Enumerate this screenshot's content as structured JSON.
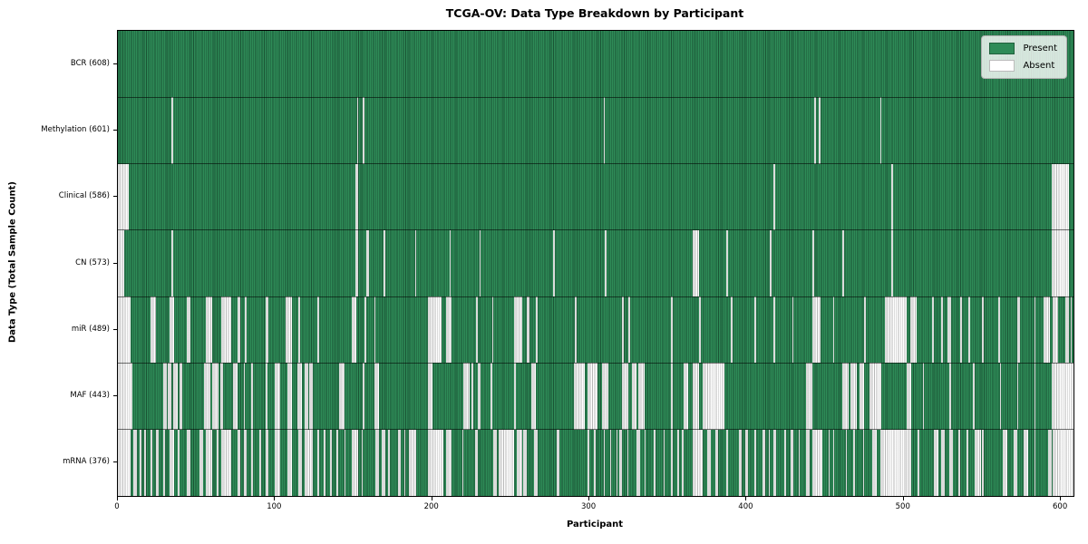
{
  "chart_data": {
    "type": "heatmap",
    "title": "TCGA-OV: Data Type Breakdown by Participant",
    "xlabel": "Participant",
    "ylabel": "Data Type (Total Sample Count)",
    "x_ticks": [
      0,
      100,
      200,
      300,
      400,
      500,
      600
    ],
    "x_max": 608,
    "grid": false,
    "legend_position": "upper right",
    "legend": [
      {
        "label": "Present",
        "color": "#2e8b57"
      },
      {
        "label": "Absent",
        "color": "#ffffff"
      }
    ],
    "rows": [
      {
        "label": "BCR (608)",
        "name": "BCR",
        "present_count": 608,
        "absent_ranges": []
      },
      {
        "label": "Methylation (601)",
        "name": "Methylation",
        "present_count": 601,
        "absent_ranges": [
          [
            34,
            35
          ],
          [
            152,
            153
          ],
          [
            156,
            157
          ],
          [
            309,
            310
          ],
          [
            443,
            444
          ],
          [
            446,
            447
          ],
          [
            485,
            486
          ]
        ]
      },
      {
        "label": "Clinical (586)",
        "name": "Clinical",
        "present_count": 586,
        "absent_ranges": [
          [
            0,
            7
          ],
          [
            151,
            153
          ],
          [
            417,
            418
          ],
          [
            492,
            493
          ],
          [
            594,
            605
          ]
        ]
      },
      {
        "label": "CN (573)",
        "name": "CN",
        "present_count": 573,
        "absent_ranges": [
          [
            0,
            4
          ],
          [
            34,
            35
          ],
          [
            151,
            153
          ],
          [
            158,
            160
          ],
          [
            169,
            170
          ],
          [
            189,
            190
          ],
          [
            211,
            212
          ],
          [
            230,
            231
          ],
          [
            277,
            278
          ],
          [
            310,
            311
          ],
          [
            366,
            370
          ],
          [
            387,
            388
          ],
          [
            415,
            416
          ],
          [
            442,
            443
          ],
          [
            461,
            462
          ],
          [
            492,
            493
          ],
          [
            594,
            605
          ]
        ]
      },
      {
        "label": "miR (489)",
        "name": "miR",
        "present_count": 489,
        "absent_ranges": [
          [
            0,
            8
          ],
          [
            21,
            24
          ],
          [
            33,
            36
          ],
          [
            44,
            46
          ],
          [
            56,
            60
          ],
          [
            66,
            72
          ],
          [
            76,
            78
          ],
          [
            81,
            82
          ],
          [
            94,
            96
          ],
          [
            107,
            111
          ],
          [
            115,
            116
          ],
          [
            127,
            128
          ],
          [
            149,
            152
          ],
          [
            157,
            158
          ],
          [
            163,
            164
          ],
          [
            197,
            206
          ],
          [
            209,
            212
          ],
          [
            228,
            229
          ],
          [
            238,
            239
          ],
          [
            252,
            257
          ],
          [
            260,
            262
          ],
          [
            266,
            267
          ],
          [
            291,
            292
          ],
          [
            321,
            322
          ],
          [
            325,
            326
          ],
          [
            352,
            353
          ],
          [
            370,
            371
          ],
          [
            390,
            391
          ],
          [
            405,
            406
          ],
          [
            417,
            418
          ],
          [
            429,
            430
          ],
          [
            442,
            447
          ],
          [
            455,
            456
          ],
          [
            475,
            476
          ],
          [
            488,
            502
          ],
          [
            504,
            508
          ],
          [
            518,
            519
          ],
          [
            524,
            525
          ],
          [
            528,
            530
          ],
          [
            536,
            537
          ],
          [
            541,
            542
          ],
          [
            550,
            551
          ],
          [
            560,
            561
          ],
          [
            572,
            574
          ],
          [
            583,
            584
          ],
          [
            589,
            593
          ],
          [
            595,
            598
          ],
          [
            603,
            605
          ],
          [
            606,
            607
          ]
        ]
      },
      {
        "label": "MAF (443)",
        "name": "MAF",
        "present_count": 443,
        "absent_ranges": [
          [
            0,
            9
          ],
          [
            29,
            31
          ],
          [
            32,
            34
          ],
          [
            35,
            38
          ],
          [
            39,
            41
          ],
          [
            55,
            59
          ],
          [
            60,
            64
          ],
          [
            65,
            67
          ],
          [
            73,
            76
          ],
          [
            80,
            81
          ],
          [
            85,
            86
          ],
          [
            94,
            95
          ],
          [
            100,
            103
          ],
          [
            108,
            111
          ],
          [
            114,
            117
          ],
          [
            119,
            121
          ],
          [
            122,
            124
          ],
          [
            141,
            144
          ],
          [
            156,
            157
          ],
          [
            163,
            166
          ],
          [
            197,
            200
          ],
          [
            220,
            224
          ],
          [
            225,
            226
          ],
          [
            229,
            231
          ],
          [
            237,
            238
          ],
          [
            252,
            253
          ],
          [
            263,
            266
          ],
          [
            290,
            297
          ],
          [
            299,
            305
          ],
          [
            308,
            312
          ],
          [
            321,
            325
          ],
          [
            327,
            330
          ],
          [
            331,
            335
          ],
          [
            352,
            353
          ],
          [
            360,
            363
          ],
          [
            366,
            370
          ],
          [
            372,
            386
          ],
          [
            438,
            442
          ],
          [
            461,
            465
          ],
          [
            466,
            470
          ],
          [
            472,
            475
          ],
          [
            478,
            486
          ],
          [
            502,
            505
          ],
          [
            512,
            513
          ],
          [
            529,
            530
          ],
          [
            544,
            545
          ],
          [
            561,
            562
          ],
          [
            572,
            573
          ],
          [
            583,
            584
          ],
          [
            594,
            608
          ]
        ]
      },
      {
        "label": "mRNA (376)",
        "name": "mRNA",
        "present_count": 376,
        "absent_ranges": [
          [
            0,
            8
          ],
          [
            10,
            12
          ],
          [
            14,
            15
          ],
          [
            17,
            18
          ],
          [
            21,
            22
          ],
          [
            24,
            26
          ],
          [
            29,
            30
          ],
          [
            33,
            36
          ],
          [
            38,
            39
          ],
          [
            44,
            46
          ],
          [
            52,
            54
          ],
          [
            56,
            60
          ],
          [
            63,
            64
          ],
          [
            66,
            72
          ],
          [
            76,
            78
          ],
          [
            80,
            82
          ],
          [
            85,
            86
          ],
          [
            90,
            91
          ],
          [
            94,
            96
          ],
          [
            100,
            103
          ],
          [
            108,
            111
          ],
          [
            115,
            117
          ],
          [
            119,
            124
          ],
          [
            127,
            128
          ],
          [
            131,
            132
          ],
          [
            135,
            136
          ],
          [
            139,
            140
          ],
          [
            144,
            145
          ],
          [
            149,
            153
          ],
          [
            155,
            156
          ],
          [
            164,
            166
          ],
          [
            168,
            170
          ],
          [
            172,
            173
          ],
          [
            178,
            180
          ],
          [
            182,
            183
          ],
          [
            185,
            190
          ],
          [
            197,
            207
          ],
          [
            209,
            212
          ],
          [
            219,
            220
          ],
          [
            227,
            229
          ],
          [
            239,
            241
          ],
          [
            242,
            252
          ],
          [
            254,
            257
          ],
          [
            258,
            260
          ],
          [
            265,
            267
          ],
          [
            279,
            281
          ],
          [
            299,
            300
          ],
          [
            303,
            304
          ],
          [
            309,
            310
          ],
          [
            313,
            314
          ],
          [
            317,
            318
          ],
          [
            319,
            321
          ],
          [
            324,
            325
          ],
          [
            330,
            332
          ],
          [
            335,
            336
          ],
          [
            341,
            342
          ],
          [
            347,
            348
          ],
          [
            352,
            353
          ],
          [
            356,
            357
          ],
          [
            359,
            360
          ],
          [
            366,
            372
          ],
          [
            375,
            377
          ],
          [
            380,
            382
          ],
          [
            387,
            388
          ],
          [
            395,
            397
          ],
          [
            399,
            401
          ],
          [
            405,
            406
          ],
          [
            410,
            412
          ],
          [
            414,
            415
          ],
          [
            417,
            419
          ],
          [
            424,
            425
          ],
          [
            428,
            430
          ],
          [
            433,
            434
          ],
          [
            438,
            440
          ],
          [
            442,
            448
          ],
          [
            452,
            453
          ],
          [
            455,
            456
          ],
          [
            463,
            464
          ],
          [
            468,
            469
          ],
          [
            474,
            475
          ],
          [
            480,
            483
          ],
          [
            485,
            505
          ],
          [
            509,
            510
          ],
          [
            519,
            522
          ],
          [
            524,
            526
          ],
          [
            529,
            531
          ],
          [
            535,
            536
          ],
          [
            540,
            541
          ],
          [
            545,
            549
          ],
          [
            550,
            551
          ],
          [
            563,
            566
          ],
          [
            570,
            572
          ],
          [
            576,
            579
          ],
          [
            583,
            584
          ],
          [
            592,
            594
          ],
          [
            595,
            608
          ]
        ]
      }
    ],
    "colors": {
      "present": "#2e8b57",
      "present_edge": "#143322",
      "absent": "#ffffff",
      "absent_edge": "#7d7d7d",
      "spine": "#000000",
      "background": "#ffffff"
    }
  }
}
